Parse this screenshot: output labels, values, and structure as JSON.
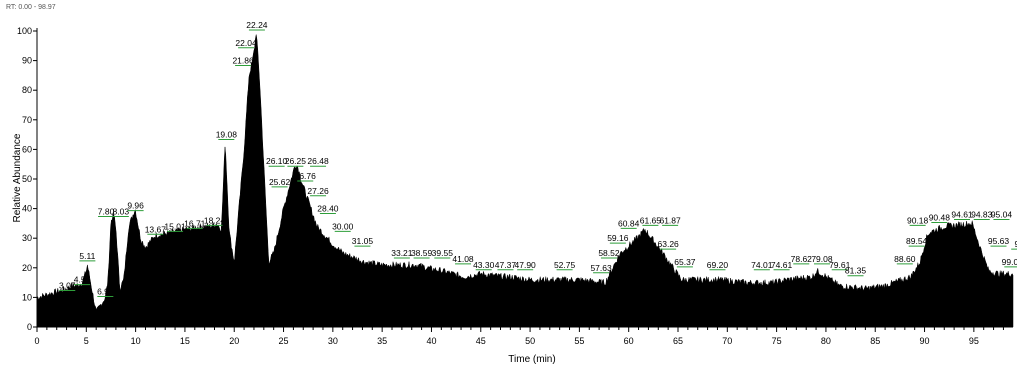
{
  "header": {
    "text": "RT: 0.00 - 98.97"
  },
  "chart_data": {
    "type": "area",
    "title": "",
    "xlabel": "Time (min)",
    "ylabel": "Relative Abundance",
    "xlim": [
      0,
      98.97
    ],
    "ylim": [
      0,
      100
    ],
    "x_ticks": [
      0,
      5,
      10,
      15,
      20,
      25,
      30,
      35,
      40,
      45,
      50,
      55,
      60,
      65,
      70,
      75,
      80,
      85,
      90,
      95
    ],
    "y_ticks": [
      0,
      10,
      20,
      30,
      40,
      50,
      60,
      70,
      80,
      90,
      100
    ],
    "grid": false,
    "fill_color": "#000000",
    "marker_color": "#2e9e3a",
    "series": [
      {
        "x": [
          0,
          1,
          2,
          3,
          3.5,
          4,
          4.57,
          5,
          5.11,
          5.5,
          6,
          6.93,
          7.2,
          7.5,
          7.8,
          8.03,
          8.4,
          8.8,
          9.3,
          9.96,
          10.5,
          11,
          12,
          13.67,
          15.01,
          16.71,
          17.5,
          18.24,
          18.7,
          19.08,
          19.5,
          20,
          21,
          21.5,
          21.86,
          22.04,
          22.24,
          22.6,
          23,
          23.5,
          24,
          25,
          25.62,
          26.1,
          26.25,
          26.48,
          26.76,
          27.26,
          28.4,
          30,
          31.05,
          33.21,
          35,
          38.59,
          39.55,
          41.08,
          43.3,
          45,
          47.37,
          47.9,
          50,
          52.75,
          55,
          57.63,
          58.52,
          59.16,
          60.84,
          61.65,
          61.87,
          63.26,
          64.5,
          65.37,
          67,
          69.2,
          72,
          74.01,
          74.61,
          76,
          78.62,
          79.08,
          79.61,
          81.35,
          84,
          86,
          88.6,
          89.54,
          90.18,
          90.48,
          92,
          94.61,
          94.83,
          95.04,
          95.63,
          96.5,
          97.5,
          98.97
        ],
        "y": [
          10,
          11,
          12,
          13,
          14,
          14,
          15,
          19,
          21,
          14,
          5,
          10,
          16,
          36,
          38,
          32,
          13,
          16,
          34,
          40,
          30,
          27,
          31,
          32,
          33,
          34,
          34,
          35,
          33,
          63,
          32,
          22,
          60,
          85,
          90,
          94,
          100,
          82,
          55,
          22,
          25,
          40,
          48,
          54,
          55,
          54,
          50,
          45,
          34,
          28,
          25,
          22,
          21,
          21,
          20,
          19,
          17,
          18,
          17,
          17,
          16,
          16,
          16,
          15,
          21,
          25,
          30,
          33,
          32,
          26,
          20,
          16,
          16,
          16,
          15,
          15,
          15,
          16,
          17,
          19,
          18,
          14,
          13,
          14,
          17,
          22,
          30,
          32,
          34,
          35,
          35,
          33,
          27,
          19,
          18,
          18
        ]
      }
    ],
    "peak_labels": [
      {
        "text": "3.07",
        "x": 3.07,
        "y": 13
      },
      {
        "text": "4.57",
        "x": 4.57,
        "y": 15
      },
      {
        "text": "5.11",
        "x": 5.11,
        "y": 23
      },
      {
        "text": "6.93",
        "x": 6.93,
        "y": 11
      },
      {
        "text": "7.80",
        "x": 7.0,
        "y": 38
      },
      {
        "text": "8.03",
        "x": 8.5,
        "y": 38
      },
      {
        "text": "9.96",
        "x": 10.0,
        "y": 40
      },
      {
        "text": "13.67",
        "x": 12.0,
        "y": 32
      },
      {
        "text": "15.01",
        "x": 14.0,
        "y": 33
      },
      {
        "text": "16.71",
        "x": 16.0,
        "y": 34
      },
      {
        "text": "18.24",
        "x": 18.0,
        "y": 35
      },
      {
        "text": "19.08",
        "x": 19.2,
        "y": 64
      },
      {
        "text": "21.86",
        "x": 20.9,
        "y": 89
      },
      {
        "text": "22.04",
        "x": 21.2,
        "y": 95
      },
      {
        "text": "22.24",
        "x": 22.3,
        "y": 101
      },
      {
        "text": "26.10",
        "x": 24.3,
        "y": 55
      },
      {
        "text": "25.62",
        "x": 24.6,
        "y": 48
      },
      {
        "text": "26.25",
        "x": 26.2,
        "y": 55
      },
      {
        "text": "26.48",
        "x": 28.5,
        "y": 55
      },
      {
        "text": "26.76",
        "x": 27.2,
        "y": 50
      },
      {
        "text": "27.26",
        "x": 28.5,
        "y": 45
      },
      {
        "text": "28.40",
        "x": 29.5,
        "y": 39
      },
      {
        "text": "30.00",
        "x": 31.0,
        "y": 33
      },
      {
        "text": "31.05",
        "x": 33.0,
        "y": 28
      },
      {
        "text": "33.21",
        "x": 37.0,
        "y": 24
      },
      {
        "text": "38.59",
        "x": 39.0,
        "y": 24
      },
      {
        "text": "39.55",
        "x": 41.1,
        "y": 24
      },
      {
        "text": "41.08",
        "x": 43.2,
        "y": 22
      },
      {
        "text": "43.30",
        "x": 45.3,
        "y": 20
      },
      {
        "text": "47.37",
        "x": 47.5,
        "y": 20
      },
      {
        "text": "47.90",
        "x": 49.5,
        "y": 20
      },
      {
        "text": "52.75",
        "x": 53.5,
        "y": 20
      },
      {
        "text": "57.63",
        "x": 57.2,
        "y": 19
      },
      {
        "text": "58.52",
        "x": 58.0,
        "y": 24
      },
      {
        "text": "59.16",
        "x": 58.9,
        "y": 29
      },
      {
        "text": "60.84",
        "x": 60.0,
        "y": 34
      },
      {
        "text": "61.65",
        "x": 62.2,
        "y": 35
      },
      {
        "text": "61.87",
        "x": 64.2,
        "y": 35
      },
      {
        "text": "63.26",
        "x": 64.0,
        "y": 27
      },
      {
        "text": "65.37",
        "x": 65.7,
        "y": 21
      },
      {
        "text": "69.20",
        "x": 69.0,
        "y": 20
      },
      {
        "text": "74.01",
        "x": 73.5,
        "y": 20
      },
      {
        "text": "74.61",
        "x": 75.5,
        "y": 20
      },
      {
        "text": "78.62",
        "x": 77.5,
        "y": 22
      },
      {
        "text": "79.08",
        "x": 79.6,
        "y": 22
      },
      {
        "text": "79.61",
        "x": 81.4,
        "y": 20
      },
      {
        "text": "81.35",
        "x": 83.0,
        "y": 18
      },
      {
        "text": "88.60",
        "x": 88.0,
        "y": 22
      },
      {
        "text": "89.54",
        "x": 89.2,
        "y": 28
      },
      {
        "text": "90.18",
        "x": 89.3,
        "y": 35
      },
      {
        "text": "90.48",
        "x": 91.5,
        "y": 36
      },
      {
        "text": "94.61",
        "x": 93.8,
        "y": 37
      },
      {
        "text": "94.83",
        "x": 95.8,
        "y": 37
      },
      {
        "text": "95.04",
        "x": 97.8,
        "y": 37
      },
      {
        "text": "95.63",
        "x": 97.5,
        "y": 28
      },
      {
        "text": "99.01",
        "x": 98.9,
        "y": 21
      },
      {
        "text": "99",
        "x": 99.6,
        "y": 27
      }
    ]
  }
}
